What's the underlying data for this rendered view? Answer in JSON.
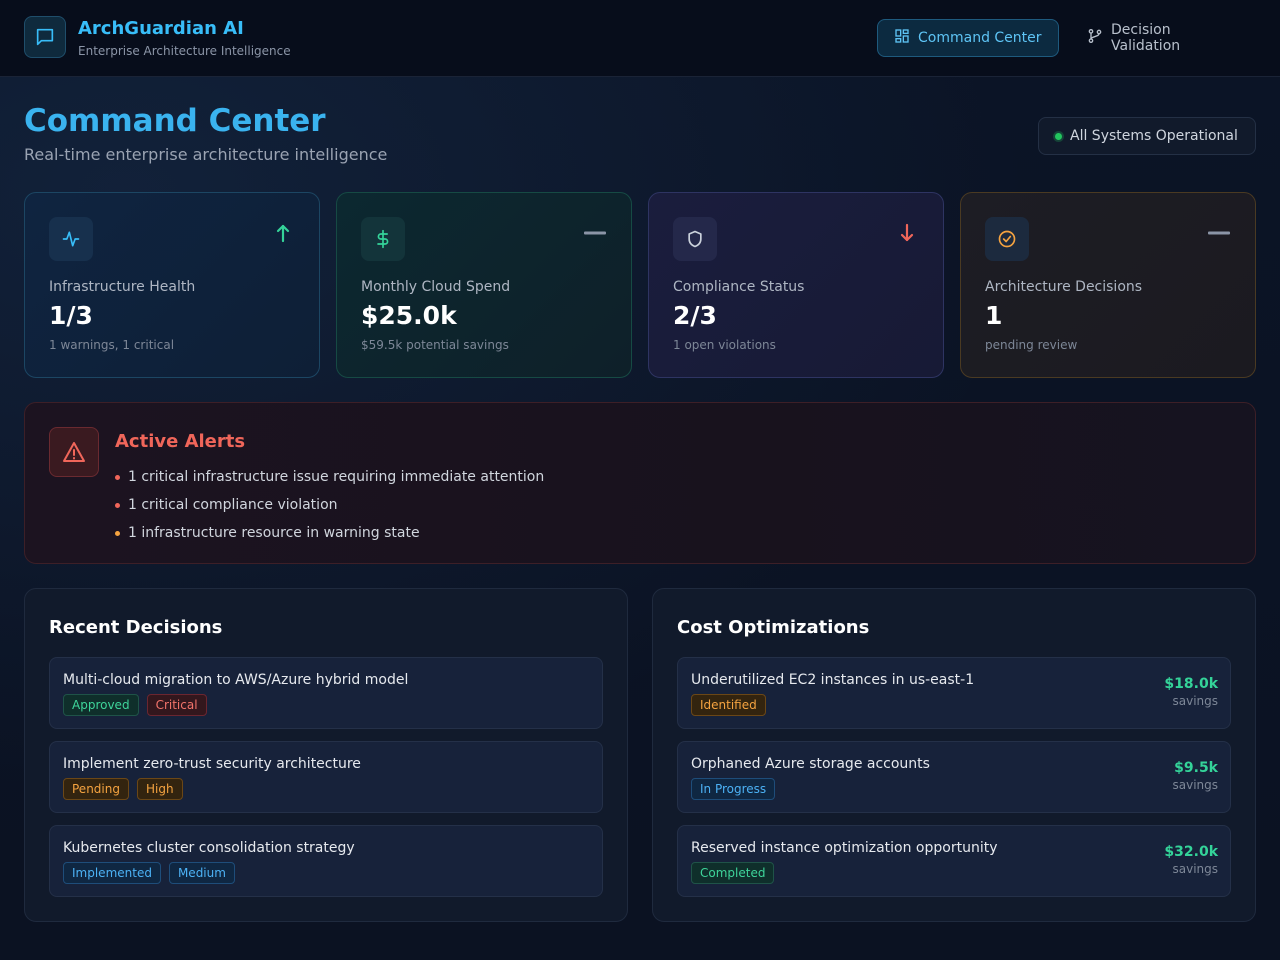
{
  "app": {
    "title": "ArchGuardian AI",
    "subtitle": "Enterprise Architecture Intelligence"
  },
  "nav": {
    "items": [
      {
        "label": "Command Center",
        "icon": "grid-icon",
        "active": true
      },
      {
        "label": "Decision Validation",
        "icon": "git-branch-icon",
        "active": false
      }
    ]
  },
  "page": {
    "title": "Command Center",
    "subtitle": "Real-time enterprise architecture intelligence",
    "status": "All Systems Operational"
  },
  "stats": [
    {
      "label": "Infrastructure Health",
      "value": "1/3",
      "note": "1 warnings, 1 critical",
      "icon": "activity-icon",
      "trend": "up"
    },
    {
      "label": "Monthly Cloud Spend",
      "value": "$25.0k",
      "note": "$59.5k potential savings",
      "icon": "dollar-icon",
      "trend": "flat"
    },
    {
      "label": "Compliance Status",
      "value": "2/3",
      "note": "1 open violations",
      "icon": "shield-icon",
      "trend": "down"
    },
    {
      "label": "Architecture Decisions",
      "value": "1",
      "note": "pending review",
      "icon": "check-circle-icon",
      "trend": "flat"
    }
  ],
  "alerts": {
    "title": "Active Alerts",
    "items": [
      {
        "text": "1 critical infrastructure issue requiring immediate attention",
        "severity": "critical"
      },
      {
        "text": "1 critical compliance violation",
        "severity": "critical"
      },
      {
        "text": "1 infrastructure resource in warning state",
        "severity": "warning"
      }
    ]
  },
  "decisions": {
    "title": "Recent Decisions",
    "items": [
      {
        "title": "Multi-cloud migration to AWS/Azure hybrid model",
        "status": "Approved",
        "priority": "Critical"
      },
      {
        "title": "Implement zero-trust security architecture",
        "status": "Pending",
        "priority": "High"
      },
      {
        "title": "Kubernetes cluster consolidation strategy",
        "status": "Implemented",
        "priority": "Medium"
      }
    ]
  },
  "optimizations": {
    "title": "Cost Optimizations",
    "savings_label": "savings",
    "items": [
      {
        "title": "Underutilized EC2 instances in us-east-1",
        "status": "Identified",
        "amount": "$18.0k"
      },
      {
        "title": "Orphaned Azure storage accounts",
        "status": "In Progress",
        "amount": "$9.5k"
      },
      {
        "title": "Reserved instance optimization opportunity",
        "status": "Completed",
        "amount": "$32.0k"
      }
    ]
  },
  "colors": {
    "accent": "#38bdf8",
    "success": "#34d399",
    "critical": "#f0665a",
    "warning": "#f5a340"
  }
}
